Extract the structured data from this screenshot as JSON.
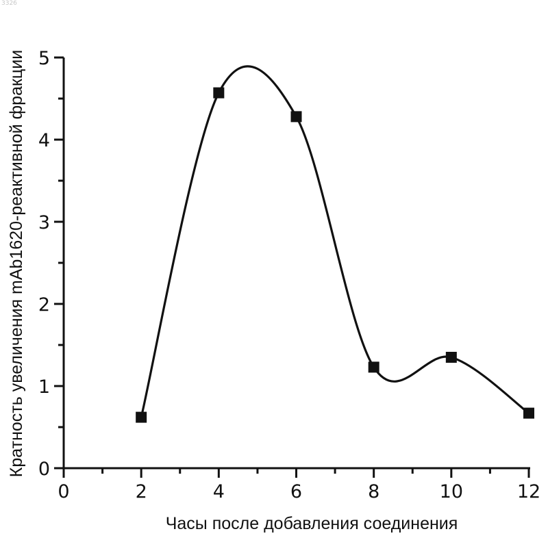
{
  "corner_note": "3326",
  "chart_data": {
    "type": "line",
    "title": "",
    "xlabel": "Часы после добавления соединения",
    "ylabel": "Кратность увеличения mAb1620-реактивной фракции",
    "xlim": [
      0,
      12
    ],
    "ylim": [
      0,
      5
    ],
    "x_ticks": [
      0,
      2,
      4,
      6,
      8,
      10,
      12
    ],
    "y_ticks": [
      0,
      1,
      2,
      3,
      4,
      5
    ],
    "smooth": true,
    "grid": false,
    "marker": "square",
    "line_color": "#111111",
    "x": [
      2,
      4,
      6,
      8,
      10,
      12
    ],
    "values": [
      0.62,
      4.57,
      4.28,
      1.23,
      1.35,
      0.67
    ]
  }
}
